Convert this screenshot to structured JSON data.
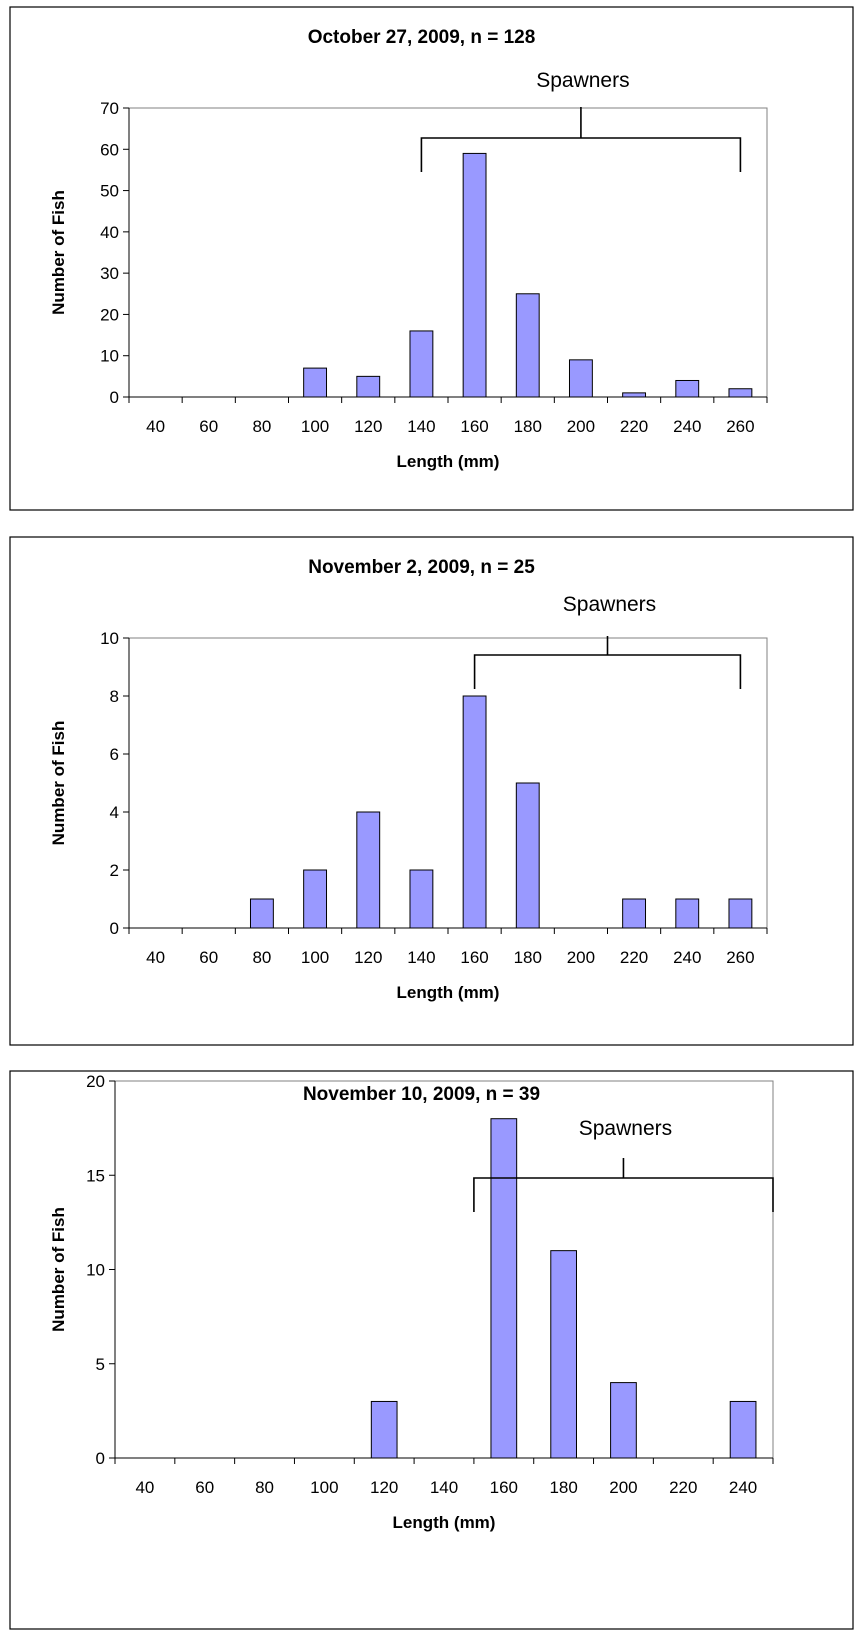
{
  "chart_data": [
    {
      "type": "bar",
      "title": "October 27, 2009, n = 128",
      "xlabel": "Length (mm)",
      "ylabel": "Number of Fish",
      "categories": [
        "40",
        "60",
        "80",
        "100",
        "120",
        "140",
        "160",
        "180",
        "200",
        "220",
        "240",
        "260"
      ],
      "values": [
        0,
        0,
        0,
        7,
        5,
        16,
        59,
        25,
        9,
        1,
        4,
        2
      ],
      "ylim": [
        0,
        70
      ],
      "yticks": [
        0,
        10,
        20,
        30,
        40,
        50,
        60,
        70
      ],
      "annotation": {
        "text": "Spawners",
        "from": "140",
        "to": "260"
      }
    },
    {
      "type": "bar",
      "title": "November 2, 2009, n = 25",
      "xlabel": "Length (mm)",
      "ylabel": "Number of Fish",
      "categories": [
        "40",
        "60",
        "80",
        "100",
        "120",
        "140",
        "160",
        "180",
        "200",
        "220",
        "240",
        "260"
      ],
      "values": [
        0,
        0,
        1,
        2,
        4,
        2,
        8,
        5,
        0,
        1,
        1,
        1
      ],
      "ylim": [
        0,
        10
      ],
      "yticks": [
        0,
        2,
        4,
        6,
        8,
        10
      ],
      "annotation": {
        "text": "Spawners",
        "from": "160",
        "to": "260"
      }
    },
    {
      "type": "bar",
      "title": "November 10, 2009, n = 39",
      "xlabel": "Length (mm)",
      "ylabel": "Number of Fish",
      "categories": [
        "40",
        "60",
        "80",
        "100",
        "120",
        "140",
        "160",
        "180",
        "200",
        "220",
        "240"
      ],
      "values": [
        0,
        0,
        0,
        0,
        3,
        0,
        18,
        11,
        4,
        0,
        3
      ],
      "ylim": [
        0,
        20
      ],
      "yticks": [
        0,
        5,
        10,
        15,
        20
      ],
      "annotation": {
        "text": "Spawners",
        "from": "150",
        "to": "250"
      }
    }
  ],
  "colors": {
    "bar_fill": "#9999ff",
    "bar_stroke": "#000000",
    "plot_border": "#808080"
  }
}
